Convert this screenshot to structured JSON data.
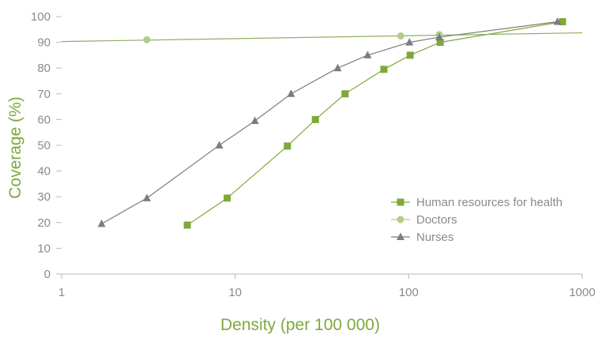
{
  "chart_data": {
    "type": "line",
    "xscale": "log",
    "xlim": [
      1,
      1000
    ],
    "ylim": [
      0,
      100
    ],
    "xticks": [
      "1",
      "10",
      "100",
      "1000"
    ],
    "yticks": [
      "0",
      "10",
      "20",
      "30",
      "40",
      "50",
      "60",
      "70",
      "80",
      "90",
      "100"
    ],
    "xlabel": "Density (per 100 000)",
    "ylabel": "Coverage (%)",
    "grid": false,
    "legend_position": "right",
    "series": [
      {
        "name": "Human resources for health",
        "color": "#7fa83a",
        "marker": "square",
        "points": [
          [
            5.3,
            19
          ],
          [
            9,
            29.5
          ],
          [
            20,
            49.7
          ],
          [
            29,
            60
          ],
          [
            43,
            70
          ],
          [
            72,
            79.5
          ],
          [
            102,
            85
          ],
          [
            152,
            90
          ],
          [
            770,
            98
          ]
        ]
      },
      {
        "name": "Doctors",
        "color": "#b2cc8a",
        "marker": "circle",
        "trendline": [
          [
            1,
            90.3
          ],
          [
            1000,
            93.7
          ]
        ],
        "points": [
          [
            3.1,
            91
          ],
          [
            90,
            92.5
          ],
          [
            150,
            93
          ]
        ]
      },
      {
        "name": "Nurses",
        "color": "#7d7d7d",
        "marker": "triangle",
        "points": [
          [
            1.7,
            19.5
          ],
          [
            3.1,
            29.5
          ],
          [
            8.1,
            50
          ],
          [
            13,
            59.5
          ],
          [
            21,
            70
          ],
          [
            39,
            80
          ],
          [
            58,
            85
          ],
          [
            101,
            90
          ],
          [
            150,
            92
          ],
          [
            720,
            98
          ]
        ]
      }
    ]
  }
}
